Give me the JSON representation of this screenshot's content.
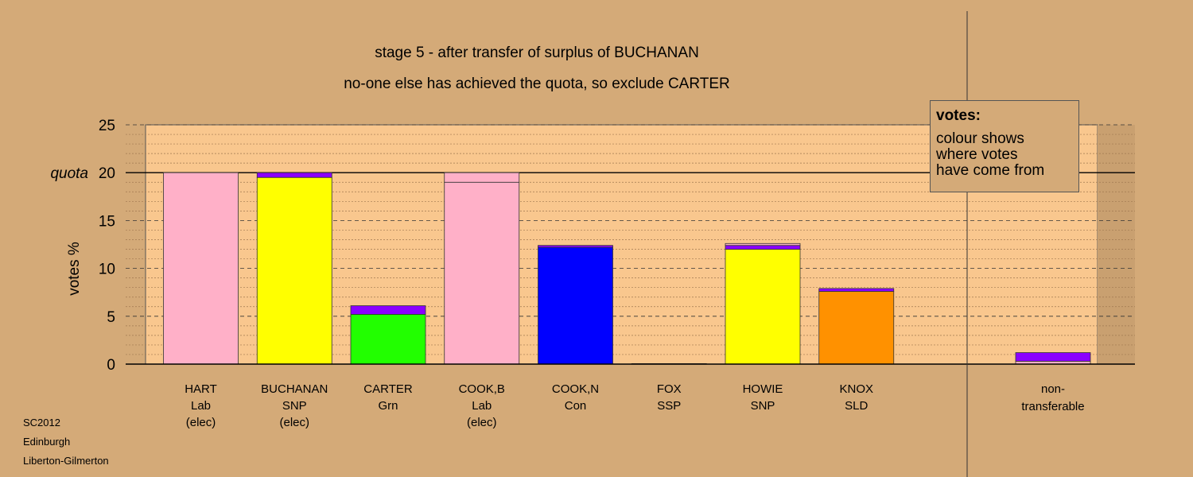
{
  "chart_data": {
    "type": "bar",
    "title": "stage 5 - after transfer of surplus of BUCHANAN",
    "subtitle": "no-one else has achieved the quota, so exclude CARTER",
    "ylabel": "votes %",
    "ylim": [
      0,
      25
    ],
    "yticks": [
      "0",
      "5",
      "10",
      "15",
      "20",
      "25"
    ],
    "quota": 20,
    "quota_label": "quota",
    "grid": true,
    "categories": [
      {
        "name": "HART",
        "party": "Lab",
        "status": "(elec)"
      },
      {
        "name": "BUCHANAN",
        "party": "SNP",
        "status": "(elec)"
      },
      {
        "name": "CARTER",
        "party": "Grn",
        "status": ""
      },
      {
        "name": "COOK,B",
        "party": "Lab",
        "status": "(elec)"
      },
      {
        "name": "COOK,N",
        "party": "Con",
        "status": ""
      },
      {
        "name": "FOX",
        "party": "SSP",
        "status": ""
      },
      {
        "name": "HOWIE",
        "party": "SNP",
        "status": ""
      },
      {
        "name": "KNOX",
        "party": "SLD",
        "status": ""
      }
    ],
    "bars": [
      {
        "segments": [
          {
            "value": 20.0,
            "color": "#ffb0c8"
          }
        ]
      },
      {
        "segments": [
          {
            "value": 19.5,
            "color": "#ffff00"
          },
          {
            "value": 0.5,
            "color": "#8b00ff"
          }
        ]
      },
      {
        "segments": [
          {
            "value": 5.2,
            "color": "#22ff00"
          },
          {
            "value": 0.9,
            "color": "#8b00ff"
          }
        ]
      },
      {
        "segments": [
          {
            "value": 19.0,
            "color": "#ffb0c8"
          },
          {
            "value": 1.0,
            "color": "#ffb0c8"
          }
        ]
      },
      {
        "segments": [
          {
            "value": 12.2,
            "color": "#0000ff"
          },
          {
            "value": 0.2,
            "color": "#8b00ff"
          }
        ]
      },
      {
        "segments": [
          {
            "value": 0.05,
            "color": "#22ff00"
          }
        ]
      },
      {
        "segments": [
          {
            "value": 12.0,
            "color": "#ffff00"
          },
          {
            "value": 0.4,
            "color": "#8b00ff"
          },
          {
            "value": 0.2,
            "color": "#ffb0c8"
          }
        ]
      },
      {
        "segments": [
          {
            "value": 7.6,
            "color": "#ff9100"
          },
          {
            "value": 0.3,
            "color": "#8b00ff"
          }
        ]
      }
    ],
    "nontransferable": {
      "label_line1": "non-",
      "label_line2": "transferable",
      "segments": [
        {
          "value": 0.3,
          "color": "#ffb0c8"
        },
        {
          "value": 0.9,
          "color": "#8b00ff"
        }
      ]
    },
    "legend": {
      "title": "votes:",
      "line1": "colour shows",
      "line2": "where votes",
      "line3": "have come from"
    },
    "footer": {
      "line1": "SC2012",
      "line2": "Edinburgh",
      "line3": "Liberton-Gilmerton"
    },
    "colors": {
      "background": "#d4aa78",
      "plot_area": "#f9c78e",
      "labour": "#ffb0c8",
      "snp": "#ffff00",
      "green": "#22ff00",
      "conservative": "#0000ff",
      "libdem": "#ff9100",
      "transfer": "#8b00ff"
    }
  }
}
